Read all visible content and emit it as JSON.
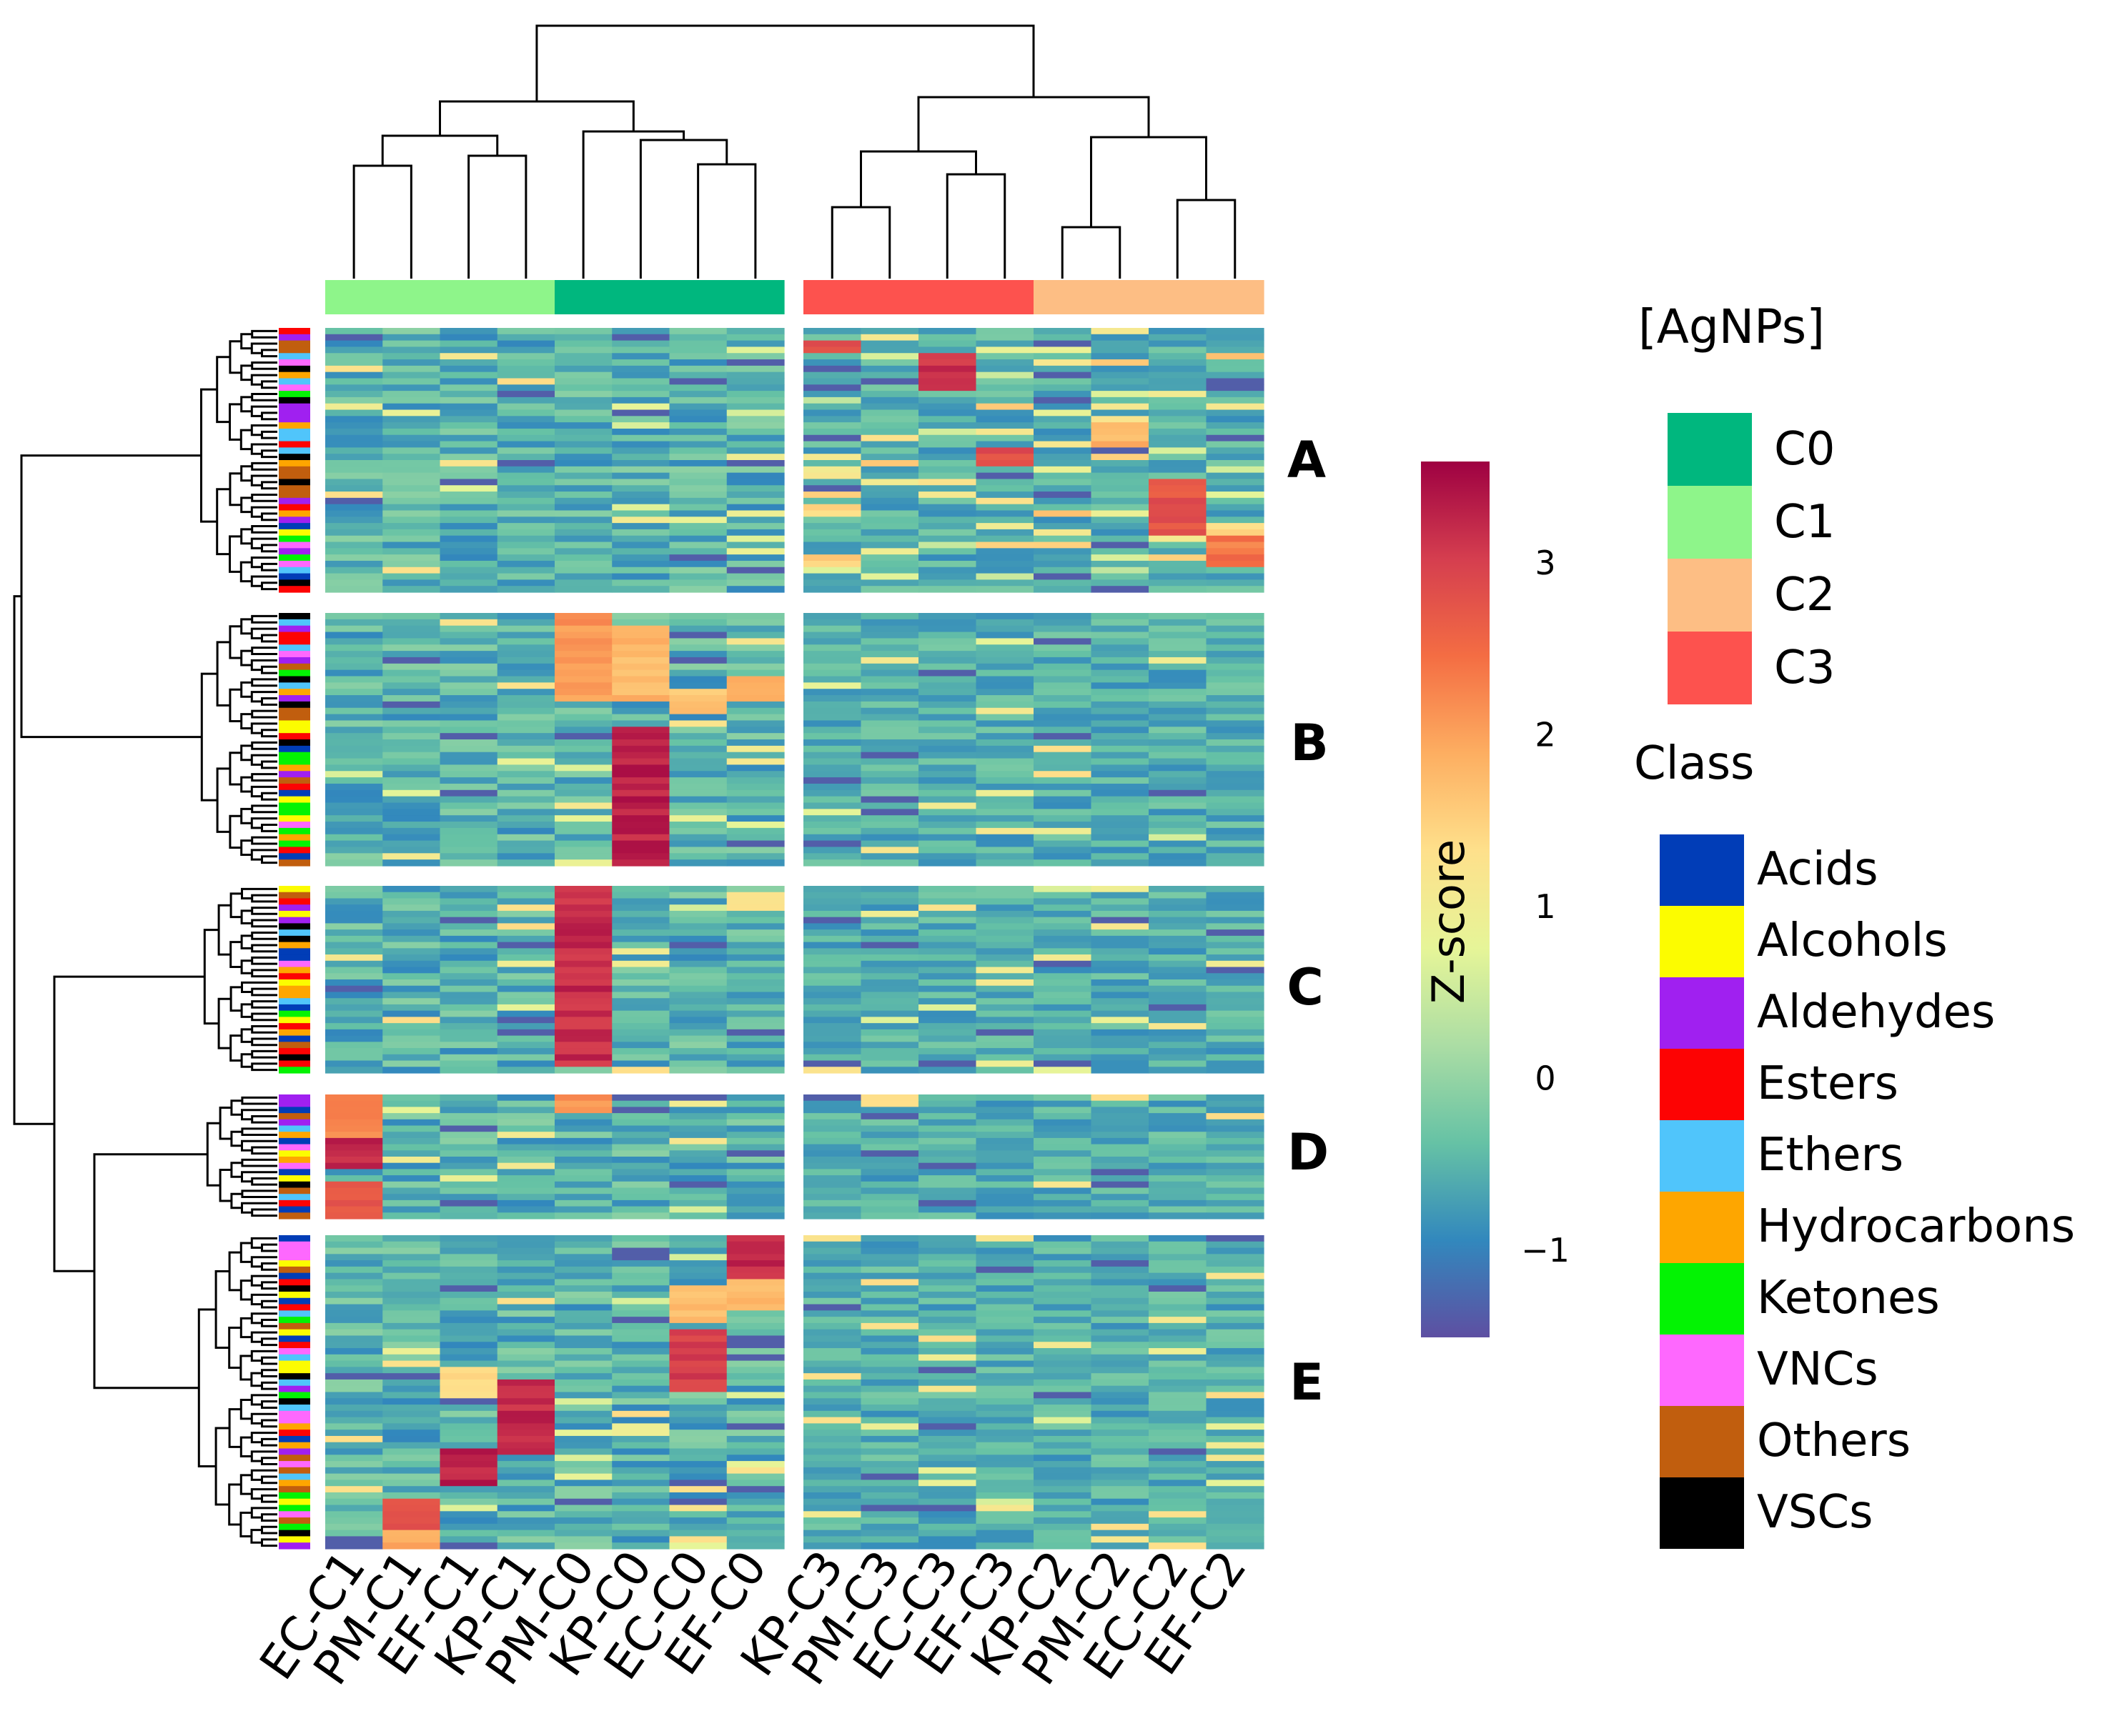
{
  "chart_data": {
    "type": "heatmap",
    "colorbar": {
      "title": "Z-score",
      "ticks": [
        {
          "value": 3,
          "label": "3"
        },
        {
          "value": 2,
          "label": "2"
        },
        {
          "value": 1,
          "label": "1"
        },
        {
          "value": 0,
          "label": "0"
        },
        {
          "value": -1,
          "label": "−1"
        }
      ],
      "range": [
        -1.5,
        3.6
      ],
      "colors": [
        "#5e4fa2",
        "#3288bd",
        "#66c2a5",
        "#abdda4",
        "#e6f598",
        "#fee08b",
        "#fdae61",
        "#f46d43",
        "#d53e4f",
        "#9e0142"
      ]
    },
    "columns": [
      "EC-C1",
      "PM-C1",
      "EF-C1",
      "KP-C1",
      "PM-C0",
      "KP-C0",
      "EC-C0",
      "EF-C0",
      "KP-C3",
      "PM-C3",
      "EC-C3",
      "EF-C3",
      "KP-C2",
      "PM-C2",
      "EC-C2",
      "EF-C2"
    ],
    "column_groups": [
      "C1",
      "C1",
      "C1",
      "C1",
      "C0",
      "C0",
      "C0",
      "C0",
      "C3",
      "C3",
      "C3",
      "C3",
      "C2",
      "C2",
      "C2",
      "C2"
    ],
    "row_clusters": [
      {
        "label": "A",
        "rows": 42
      },
      {
        "label": "B",
        "rows": 40
      },
      {
        "label": "C",
        "rows": 30
      },
      {
        "label": "D",
        "rows": 20
      },
      {
        "label": "E",
        "rows": 50
      }
    ],
    "legend_agnps": {
      "title": "[AgNPs]",
      "items": [
        {
          "label": "C0",
          "color": "#00b77e"
        },
        {
          "label": "C1",
          "color": "#8ef58a"
        },
        {
          "label": "C2",
          "color": "#fdbe84"
        },
        {
          "label": "C3",
          "color": "#fd524e"
        }
      ]
    },
    "legend_class": {
      "title": "Class",
      "items": [
        {
          "label": "Acids",
          "color": "#013db7"
        },
        {
          "label": "Alcohols",
          "color": "#fcfc00"
        },
        {
          "label": "Aldehydes",
          "color": "#a020f0"
        },
        {
          "label": "Esters",
          "color": "#fd0303"
        },
        {
          "label": "Ethers",
          "color": "#50c5fb"
        },
        {
          "label": "Hydrocarbons",
          "color": "#fea600"
        },
        {
          "label": "Ketones",
          "color": "#03f303"
        },
        {
          "label": "VNCs",
          "color": "#fe68fe"
        },
        {
          "label": "Others",
          "color": "#c15e0e"
        },
        {
          "label": "VSCs",
          "color": "#000000"
        }
      ]
    },
    "highlights": [
      {
        "cluster": 0,
        "col": 8,
        "rows": [
          2,
          4
        ],
        "z": 3.0
      },
      {
        "cluster": 0,
        "col": 10,
        "rows": [
          4,
          10
        ],
        "z": 3.3
      },
      {
        "cluster": 0,
        "col": 11,
        "rows": [
          19,
          22
        ],
        "z": 3.0
      },
      {
        "cluster": 0,
        "col": 13,
        "rows": [
          15,
          19
        ],
        "z": 2.0
      },
      {
        "cluster": 0,
        "col": 14,
        "rows": [
          24,
          33
        ],
        "z": 3.0
      },
      {
        "cluster": 0,
        "col": 15,
        "rows": [
          33,
          38
        ],
        "z": 2.6
      },
      {
        "cluster": 1,
        "col": 4,
        "rows": [
          0,
          14
        ],
        "z": 2.3
      },
      {
        "cluster": 1,
        "col": 5,
        "rows": [
          2,
          14
        ],
        "z": 2.0
      },
      {
        "cluster": 1,
        "col": 5,
        "rows": [
          18,
          40
        ],
        "z": 3.5
      },
      {
        "cluster": 1,
        "col": 6,
        "rows": [
          12,
          16
        ],
        "z": 1.9
      },
      {
        "cluster": 1,
        "col": 7,
        "rows": [
          10,
          14
        ],
        "z": 2.0
      },
      {
        "cluster": 2,
        "col": 4,
        "rows": [
          0,
          29
        ],
        "z": 3.4
      },
      {
        "cluster": 2,
        "col": 7,
        "rows": [
          1,
          4
        ],
        "z": 1.6
      },
      {
        "cluster": 3,
        "col": 0,
        "rows": [
          0,
          7
        ],
        "z": 2.4
      },
      {
        "cluster": 3,
        "col": 0,
        "rows": [
          7,
          12
        ],
        "z": 3.5
      },
      {
        "cluster": 3,
        "col": 0,
        "rows": [
          14,
          20
        ],
        "z": 3.0
      },
      {
        "cluster": 3,
        "col": 4,
        "rows": [
          0,
          3
        ],
        "z": 2.3
      },
      {
        "cluster": 4,
        "col": 7,
        "rows": [
          0,
          7
        ],
        "z": 3.4
      },
      {
        "cluster": 4,
        "col": 7,
        "rows": [
          7,
          12
        ],
        "z": 2.0
      },
      {
        "cluster": 4,
        "col": 6,
        "rows": [
          8,
          14
        ],
        "z": 2.0
      },
      {
        "cluster": 4,
        "col": 6,
        "rows": [
          15,
          25
        ],
        "z": 3.2
      },
      {
        "cluster": 4,
        "col": 3,
        "rows": [
          23,
          35
        ],
        "z": 3.4
      },
      {
        "cluster": 4,
        "col": 2,
        "rows": [
          21,
          26
        ],
        "z": 1.6
      },
      {
        "cluster": 4,
        "col": 2,
        "rows": [
          34,
          40
        ],
        "z": 3.5
      },
      {
        "cluster": 4,
        "col": 1,
        "rows": [
          42,
          47
        ],
        "z": 3.0
      },
      {
        "cluster": 4,
        "col": 1,
        "rows": [
          47,
          50
        ],
        "z": 2.2
      }
    ]
  }
}
